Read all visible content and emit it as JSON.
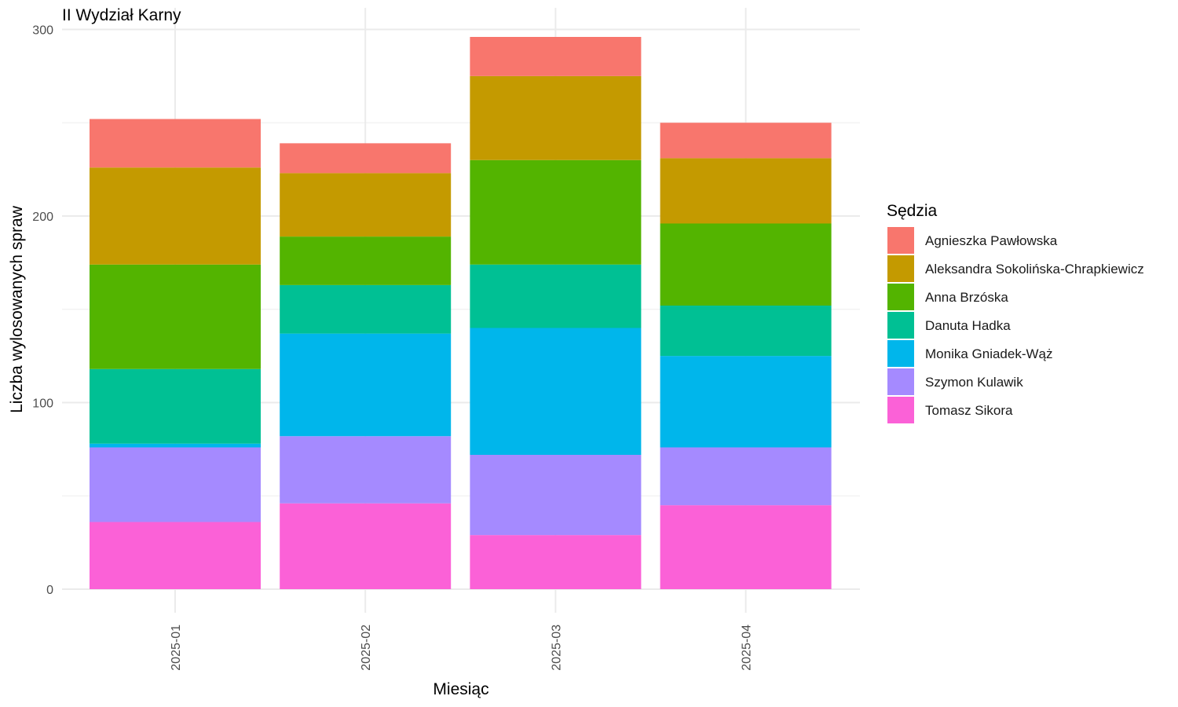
{
  "chart_data": {
    "type": "bar",
    "stacked": true,
    "title": "II Wydział Karny",
    "xlabel": "Miesiąc",
    "ylabel": "Liczba wylosowanych spraw",
    "ylim": [
      0,
      300
    ],
    "yticks": [
      0,
      100,
      200,
      300
    ],
    "grid": true,
    "legend_title": "Sędzia",
    "legend_position": "right",
    "categories": [
      "2025-01",
      "2025-02",
      "2025-03",
      "2025-04"
    ],
    "series": [
      {
        "name": "Tomasz Sikora",
        "color": "#FB61D7",
        "values": [
          36,
          46,
          29,
          45
        ]
      },
      {
        "name": "Szymon Kulawik",
        "color": "#A58AFF",
        "values": [
          40,
          36,
          43,
          31
        ]
      },
      {
        "name": "Monika Gniadek-Wąż",
        "color": "#00B6EB",
        "values": [
          2,
          55,
          68,
          49
        ]
      },
      {
        "name": "Danuta Hadka",
        "color": "#00C094",
        "values": [
          40,
          26,
          34,
          27
        ]
      },
      {
        "name": "Anna Brzóska",
        "color": "#53B400",
        "values": [
          56,
          26,
          56,
          44
        ]
      },
      {
        "name": "Aleksandra Sokolińska-Chrapkiewicz",
        "color": "#C49A00",
        "values": [
          52,
          34,
          45,
          35
        ]
      },
      {
        "name": "Agnieszka Pawłowska",
        "color": "#F8766D",
        "values": [
          26,
          16,
          21,
          19
        ]
      }
    ],
    "legend_order": [
      "Agnieszka Pawłowska",
      "Aleksandra Sokolińska-Chrapkiewicz",
      "Anna Brzóska",
      "Danuta Hadka",
      "Monika Gniadek-Wąż",
      "Szymon Kulawik",
      "Tomasz Sikora"
    ]
  }
}
